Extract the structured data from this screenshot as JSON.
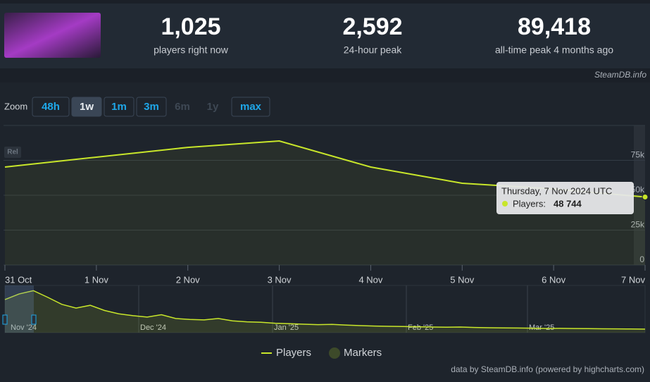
{
  "header": {
    "stats": [
      {
        "value": "1,025",
        "label": "players right now"
      },
      {
        "value": "2,592",
        "label": "24-hour peak"
      },
      {
        "value": "89,418",
        "label": "all-time peak 4 months ago"
      }
    ],
    "credit": "SteamDB.info"
  },
  "zoom": {
    "label": "Zoom",
    "buttons": [
      {
        "text": "48h",
        "state": "enabled"
      },
      {
        "text": "1w",
        "state": "selected"
      },
      {
        "text": "1m",
        "state": "enabled"
      },
      {
        "text": "3m",
        "state": "enabled"
      },
      {
        "text": "6m",
        "state": "disabled"
      },
      {
        "text": "1y",
        "state": "disabled"
      },
      {
        "text": "max",
        "state": "enabled"
      }
    ]
  },
  "chart_data": {
    "type": "line",
    "badge": "Rel",
    "categories": [
      "31 Oct",
      "1 Nov",
      "2 Nov",
      "3 Nov",
      "4 Nov",
      "5 Nov",
      "6 Nov",
      "7 Nov"
    ],
    "series": [
      {
        "name": "Players",
        "color": "#c8e62a",
        "values": [
          70200,
          77300,
          84300,
          88900,
          70200,
          58600,
          54500,
          48744
        ]
      }
    ],
    "markers": {
      "name": "Markers",
      "color": "#3d4a2a"
    },
    "ylim": [
      0,
      100000
    ],
    "yticks": [
      {
        "value": 0,
        "label": "0"
      },
      {
        "value": 25000,
        "label": "25k"
      },
      {
        "value": 50000,
        "label": "50k"
      },
      {
        "value": 75000,
        "label": "75k"
      }
    ],
    "grid": true,
    "tooltip": {
      "title": "Thursday, 7 Nov 2024 UTC",
      "series_label": "Players:",
      "value": 48744,
      "value_label": "48 744"
    },
    "navigator": {
      "labels": [
        "Nov '24",
        "Dec '24",
        "Jan '25",
        "Feb '25",
        "Mar '25"
      ],
      "ylim": [
        0,
        100000
      ],
      "values": [
        70000,
        82000,
        89000,
        75000,
        60000,
        52000,
        58000,
        47000,
        40000,
        36000,
        33000,
        38000,
        30000,
        28000,
        27000,
        30000,
        25000,
        23000,
        22000,
        20000,
        19000,
        18000,
        17000,
        17500,
        16000,
        15000,
        14000,
        13500,
        13000,
        12500,
        12000,
        11500,
        12000,
        11000,
        10500,
        10000,
        9800,
        9500,
        9000,
        9200,
        8800,
        8500,
        8200,
        8000,
        7800,
        7500
      ]
    }
  },
  "footer": "data by SteamDB.info (powered by highcharts.com)"
}
